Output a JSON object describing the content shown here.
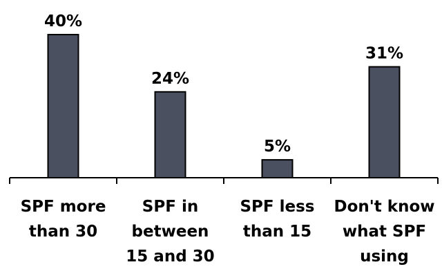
{
  "chart_data": {
    "type": "bar",
    "title": "",
    "xlabel": "",
    "ylabel": "",
    "categories": [
      [
        "SPF more",
        "than 30"
      ],
      [
        "SPF in",
        "between",
        "15 and 30"
      ],
      [
        "SPF less",
        "than 15"
      ],
      [
        "Don't know",
        "what SPF",
        "using"
      ]
    ],
    "values": [
      40,
      24,
      5,
      31
    ],
    "value_labels": [
      "40%",
      "24%",
      "5%",
      "31%"
    ],
    "ylim": [
      0,
      40
    ],
    "grid": false,
    "legend": "none",
    "colors": {
      "bar_fill": "#4a5060",
      "bar_stroke": "#000000",
      "axis": "#000000"
    }
  }
}
